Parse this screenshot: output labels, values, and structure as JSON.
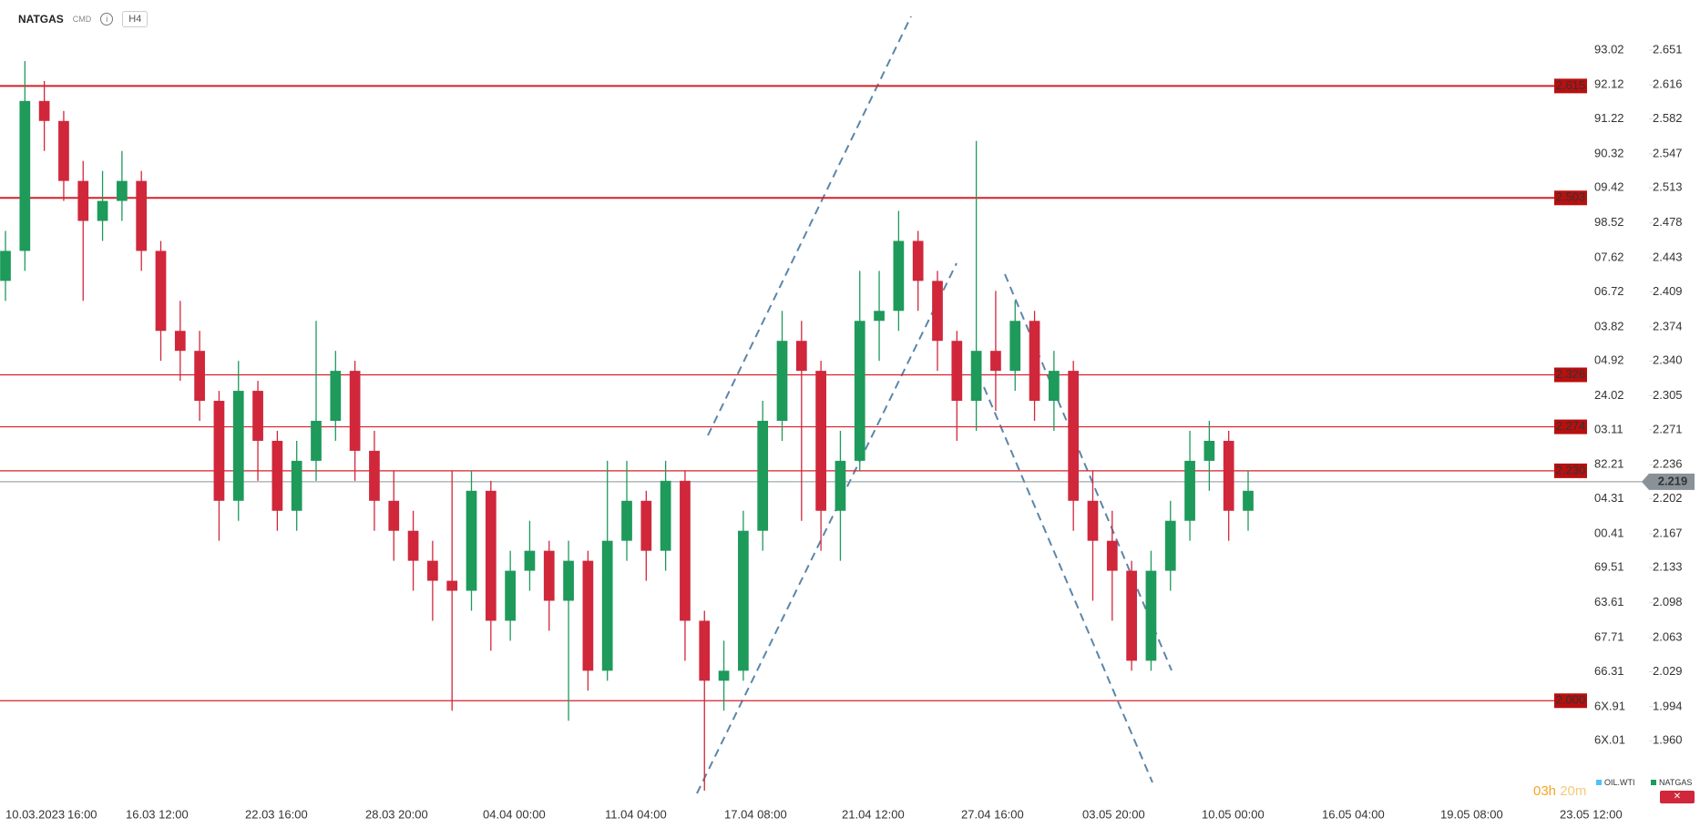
{
  "header": {
    "symbol": "NATGAS",
    "badge": "CMD",
    "timeframe": "H4"
  },
  "countdown": {
    "hours": "03h",
    "minutes": "20m"
  },
  "legend": [
    {
      "name": "OIL.WTI",
      "color": "#4fc3f7"
    },
    {
      "name": "NATGAS",
      "color": "#1e9a5b"
    }
  ],
  "chart_data": {
    "type": "candlestick",
    "x_labels": [
      "10.03.2023",
      "16:00",
      "16.03 12:00",
      "22.03 16:00",
      "28.03 20:00",
      "04.04 00:00",
      "11.04 04:00",
      "17.04 08:00",
      "21.04 12:00",
      "27.04 16:00",
      "03.05 20:00",
      "10.05 00:00",
      "16.05 04:00",
      "19.05 08:00",
      "23.05 12:00"
    ],
    "series": [
      {
        "name": "NATGAS",
        "up_color": "#1e9a5b",
        "down_color": "#d0273b",
        "open": [
          2.42,
          2.45,
          2.6,
          2.58,
          2.52,
          2.48,
          2.5,
          2.52,
          2.45,
          2.37,
          2.35,
          2.3,
          2.2,
          2.31,
          2.26,
          2.19,
          2.24,
          2.28,
          2.33,
          2.25,
          2.2,
          2.17,
          2.14,
          2.12,
          2.11,
          2.21,
          2.08,
          2.13,
          2.15,
          2.1,
          2.14,
          2.03,
          2.16,
          2.2,
          2.15,
          2.22,
          2.08,
          2.02,
          2.03,
          2.17,
          2.28,
          2.36,
          2.33,
          2.19,
          2.24,
          2.38,
          2.39,
          2.46,
          2.42,
          2.36,
          2.3,
          2.35,
          2.33,
          2.38,
          2.3,
          2.33,
          2.2,
          2.16,
          2.13,
          2.04,
          2.13,
          2.18,
          2.24,
          2.26,
          2.19
        ],
        "high": [
          2.47,
          2.64,
          2.62,
          2.59,
          2.54,
          2.53,
          2.55,
          2.53,
          2.46,
          2.4,
          2.37,
          2.31,
          2.34,
          2.32,
          2.27,
          2.26,
          2.38,
          2.35,
          2.34,
          2.27,
          2.23,
          2.19,
          2.16,
          2.23,
          2.23,
          2.22,
          2.15,
          2.18,
          2.16,
          2.16,
          2.15,
          2.24,
          2.24,
          2.21,
          2.24,
          2.23,
          2.09,
          2.06,
          2.19,
          2.3,
          2.39,
          2.38,
          2.34,
          2.27,
          2.43,
          2.43,
          2.49,
          2.47,
          2.43,
          2.37,
          2.56,
          2.41,
          2.4,
          2.39,
          2.35,
          2.34,
          2.23,
          2.19,
          2.14,
          2.15,
          2.2,
          2.27,
          2.28,
          2.27,
          2.23
        ],
        "low": [
          2.4,
          2.43,
          2.55,
          2.5,
          2.4,
          2.46,
          2.48,
          2.43,
          2.34,
          2.32,
          2.28,
          2.16,
          2.18,
          2.22,
          2.17,
          2.17,
          2.22,
          2.26,
          2.22,
          2.17,
          2.14,
          2.11,
          2.08,
          1.99,
          2.09,
          2.05,
          2.06,
          2.11,
          2.07,
          1.98,
          2.01,
          2.02,
          2.14,
          2.12,
          2.13,
          2.04,
          1.91,
          1.99,
          2.02,
          2.15,
          2.26,
          2.18,
          2.15,
          2.14,
          2.23,
          2.34,
          2.37,
          2.39,
          2.33,
          2.26,
          2.27,
          2.29,
          2.31,
          2.28,
          2.27,
          2.17,
          2.1,
          2.08,
          2.03,
          2.03,
          2.11,
          2.16,
          2.21,
          2.16,
          2.17
        ],
        "close": [
          2.45,
          2.6,
          2.58,
          2.52,
          2.48,
          2.5,
          2.52,
          2.45,
          2.37,
          2.35,
          2.3,
          2.2,
          2.31,
          2.26,
          2.19,
          2.24,
          2.28,
          2.33,
          2.25,
          2.2,
          2.17,
          2.14,
          2.12,
          2.11,
          2.21,
          2.08,
          2.13,
          2.15,
          2.1,
          2.14,
          2.03,
          2.16,
          2.2,
          2.15,
          2.22,
          2.08,
          2.02,
          2.03,
          2.17,
          2.28,
          2.36,
          2.33,
          2.19,
          2.24,
          2.38,
          2.39,
          2.46,
          2.42,
          2.36,
          2.3,
          2.35,
          2.33,
          2.38,
          2.3,
          2.33,
          2.2,
          2.16,
          2.13,
          2.04,
          2.13,
          2.18,
          2.24,
          2.26,
          2.19,
          2.21
        ]
      }
    ],
    "ylim": [
      1.9,
      2.701
    ],
    "yticks": [
      2.651,
      2.616,
      2.582,
      2.547,
      2.513,
      2.478,
      2.443,
      2.409,
      2.374,
      {
        "value": 2.34,
        "label": "2.340"
      },
      2.305,
      2.271,
      2.236,
      2.202,
      2.167,
      2.133,
      2.098,
      2.063,
      2.029,
      1.994,
      {
        "value": 1.96,
        "label": "1.960"
      }
    ],
    "y2_labels": [
      "93.02",
      "92.12",
      "91.22",
      "90.32",
      "09.42",
      "98.52",
      "07.62",
      "06.72",
      "03.82",
      "04.92",
      "24.02",
      "03.11",
      "82.21",
      "04.31",
      "00.41",
      "69.51",
      "63.61",
      "67.71",
      "66.31",
      "6X.91",
      "6X.01"
    ],
    "levels": [
      2.615,
      2.503,
      2.326,
      2.274,
      {
        "value": 2.23,
        "label": "2.230"
      },
      {
        "value": 2,
        "label": "2.000"
      }
    ],
    "level_color": "#d6202a",
    "last_price": 2.219,
    "last_price_color": "#8a9299"
  }
}
